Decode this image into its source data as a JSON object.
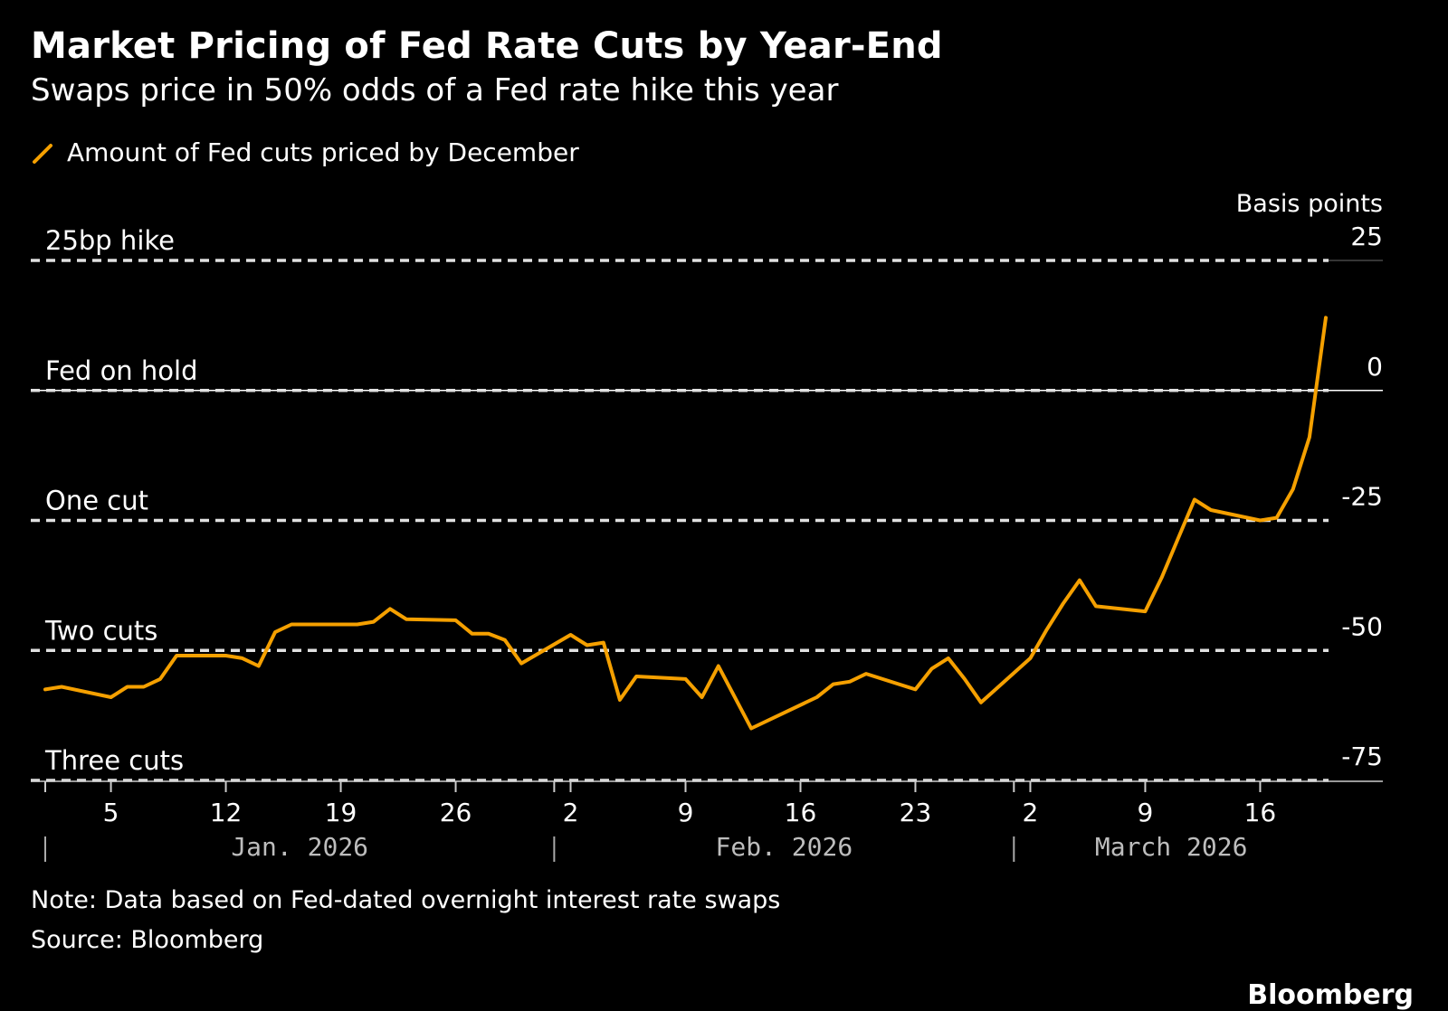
{
  "title": "Market Pricing of Fed Rate Cuts by Year-End",
  "subtitle": "Swaps price in 50% odds of a Fed rate hike this year",
  "note": "Note: Data based on Fed-dated overnight interest rate swaps",
  "source": "Source: Bloomberg",
  "brand": "Bloomberg",
  "colors": {
    "background": "#000000",
    "series": "#F5A000",
    "text": "#FFFFFF",
    "reference_lines": "#E0E0E0"
  },
  "chart_data": {
    "type": "line",
    "title": "Market Pricing of Fed Rate Cuts by Year-End",
    "subtitle": "Swaps price in 50% odds of a Fed rate hike this year",
    "ylabel": "Basis points",
    "ylim": [
      -75,
      25
    ],
    "y_ticks": [
      25,
      0,
      -25,
      -50,
      -75
    ],
    "y_tick_labels": [
      "25",
      "0",
      "-25",
      "-50",
      "-75"
    ],
    "y_axis_side": "right",
    "grid": false,
    "legend_placement": "top-left",
    "xlim": [
      "2026-01-01",
      "2026-03-20"
    ],
    "x_ticks": [
      {
        "date": "2026-01-05",
        "label": "5"
      },
      {
        "date": "2026-01-12",
        "label": "12"
      },
      {
        "date": "2026-01-19",
        "label": "19"
      },
      {
        "date": "2026-01-26",
        "label": "26"
      },
      {
        "date": "2026-02-02",
        "label": "2"
      },
      {
        "date": "2026-02-09",
        "label": "9"
      },
      {
        "date": "2026-02-16",
        "label": "16"
      },
      {
        "date": "2026-02-23",
        "label": "23"
      },
      {
        "date": "2026-03-02",
        "label": "2"
      },
      {
        "date": "2026-03-09",
        "label": "9"
      },
      {
        "date": "2026-03-16",
        "label": "16"
      }
    ],
    "month_labels": [
      {
        "start": "2026-01-01",
        "label": "Jan. 2026"
      },
      {
        "start": "2026-02-01",
        "label": "Feb. 2026"
      },
      {
        "start": "2026-03-01",
        "label": "March 2026"
      }
    ],
    "reference_lines": [
      {
        "y": 25,
        "label": "25bp hike"
      },
      {
        "y": 0,
        "label": "Fed on hold"
      },
      {
        "y": -25,
        "label": "One cut"
      },
      {
        "y": -50,
        "label": "Two cuts"
      },
      {
        "y": -75,
        "label": "Three cuts"
      }
    ],
    "series": [
      {
        "name": "Amount of Fed cuts priced by December",
        "color": "#F5A000",
        "points": [
          {
            "x": "2026-01-01",
            "y": -57.5
          },
          {
            "x": "2026-01-02",
            "y": -57.0
          },
          {
            "x": "2026-01-05",
            "y": -59.0
          },
          {
            "x": "2026-01-06",
            "y": -57.0
          },
          {
            "x": "2026-01-07",
            "y": -57.0
          },
          {
            "x": "2026-01-08",
            "y": -55.5
          },
          {
            "x": "2026-01-09",
            "y": -51.0
          },
          {
            "x": "2026-01-12",
            "y": -51.0
          },
          {
            "x": "2026-01-13",
            "y": -51.5
          },
          {
            "x": "2026-01-14",
            "y": -53.0
          },
          {
            "x": "2026-01-15",
            "y": -46.5
          },
          {
            "x": "2026-01-16",
            "y": -45.0
          },
          {
            "x": "2026-01-19",
            "y": -45.0
          },
          {
            "x": "2026-01-20",
            "y": -45.0
          },
          {
            "x": "2026-01-21",
            "y": -44.5
          },
          {
            "x": "2026-01-22",
            "y": -42.0
          },
          {
            "x": "2026-01-23",
            "y": -44.0
          },
          {
            "x": "2026-01-26",
            "y": -44.2
          },
          {
            "x": "2026-01-27",
            "y": -46.8
          },
          {
            "x": "2026-01-28",
            "y": -46.8
          },
          {
            "x": "2026-01-29",
            "y": -48.0
          },
          {
            "x": "2026-01-30",
            "y": -52.5
          },
          {
            "x": "2026-02-02",
            "y": -47.0
          },
          {
            "x": "2026-02-03",
            "y": -49.0
          },
          {
            "x": "2026-02-04",
            "y": -48.5
          },
          {
            "x": "2026-02-05",
            "y": -59.5
          },
          {
            "x": "2026-02-06",
            "y": -55.0
          },
          {
            "x": "2026-02-09",
            "y": -55.5
          },
          {
            "x": "2026-02-10",
            "y": -59.0
          },
          {
            "x": "2026-02-11",
            "y": -53.0
          },
          {
            "x": "2026-02-13",
            "y": -65.0
          },
          {
            "x": "2026-02-17",
            "y": -59.0
          },
          {
            "x": "2026-02-18",
            "y": -56.5
          },
          {
            "x": "2026-02-19",
            "y": -56.0
          },
          {
            "x": "2026-02-20",
            "y": -54.5
          },
          {
            "x": "2026-02-23",
            "y": -57.5
          },
          {
            "x": "2026-02-24",
            "y": -53.5
          },
          {
            "x": "2026-02-25",
            "y": -51.5
          },
          {
            "x": "2026-02-26",
            "y": -55.5
          },
          {
            "x": "2026-02-27",
            "y": -60.0
          },
          {
            "x": "2026-03-02",
            "y": -51.5
          },
          {
            "x": "2026-03-03",
            "y": -46.0
          },
          {
            "x": "2026-03-04",
            "y": -41.0
          },
          {
            "x": "2026-03-05",
            "y": -36.5
          },
          {
            "x": "2026-03-06",
            "y": -41.5
          },
          {
            "x": "2026-03-09",
            "y": -42.5
          },
          {
            "x": "2026-03-10",
            "y": -36.0
          },
          {
            "x": "2026-03-11",
            "y": -28.5
          },
          {
            "x": "2026-03-12",
            "y": -21.0
          },
          {
            "x": "2026-03-13",
            "y": -23.0
          },
          {
            "x": "2026-03-16",
            "y": -25.0
          },
          {
            "x": "2026-03-17",
            "y": -24.5
          },
          {
            "x": "2026-03-18",
            "y": -19.0
          },
          {
            "x": "2026-03-19",
            "y": -9.0
          },
          {
            "x": "2026-03-20",
            "y": 14.0
          }
        ]
      }
    ]
  }
}
